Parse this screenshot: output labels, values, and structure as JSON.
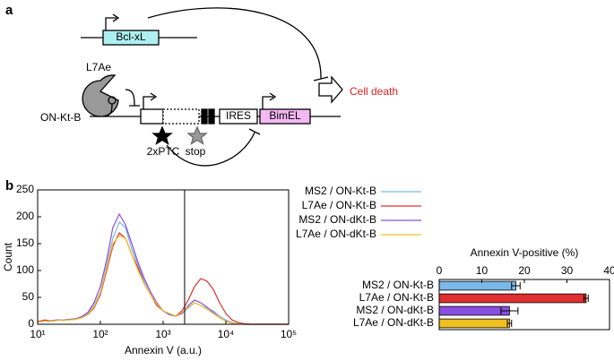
{
  "panels": [
    "a",
    "b"
  ],
  "diagram": {
    "bcl": "Bcl-xL",
    "l7ae": "L7Ae",
    "construct": "ON-Kt-B",
    "ires": "IRES",
    "bimel": "BimEL",
    "death": "Cell death",
    "ptc": "2xPTC",
    "stop": "stop"
  },
  "chart_data": [
    {
      "type": "line",
      "xlabel": "Annexin V (a.u.)",
      "ylabel": "Count",
      "xlog": true,
      "xlim": [
        10,
        100000
      ],
      "xticks": [
        {
          "value": 10,
          "label": "10¹"
        },
        {
          "value": 100,
          "label": "10²"
        },
        {
          "value": 1000,
          "label": "10³"
        },
        {
          "value": 10000,
          "label": "10⁴"
        },
        {
          "value": 100000,
          "label": "10⁵"
        }
      ],
      "ylim": [
        0,
        250
      ],
      "yticks": [
        0,
        50,
        100,
        150,
        200,
        250
      ],
      "gate": 2200,
      "x": [
        10,
        13,
        16,
        20,
        25,
        32,
        40,
        50,
        63,
        79,
        100,
        126,
        158,
        200,
        251,
        316,
        398,
        501,
        631,
        794,
        1000,
        1259,
        1585,
        1995,
        2512,
        3162,
        3981,
        5012,
        6310,
        7943,
        10000,
        12589,
        15849,
        19953,
        25119,
        31623,
        39811,
        50119,
        63096,
        79433,
        100000
      ],
      "series": [
        {
          "name": "MS2 / ON-Kt-B",
          "color": "#7ab8e8",
          "values": [
            5,
            8,
            6,
            8,
            7,
            8,
            10,
            12,
            20,
            35,
            60,
            110,
            160,
            190,
            180,
            140,
            110,
            80,
            60,
            40,
            25,
            20,
            15,
            20,
            30,
            40,
            35,
            30,
            25,
            15,
            8,
            3,
            1,
            0,
            0,
            0,
            0,
            0,
            0,
            0,
            0
          ]
        },
        {
          "name": "L7Ae / ON-Kt-B",
          "color": "#e03030",
          "values": [
            5,
            8,
            6,
            7,
            8,
            9,
            10,
            12,
            18,
            30,
            55,
            100,
            145,
            170,
            160,
            130,
            105,
            75,
            55,
            35,
            25,
            18,
            15,
            25,
            45,
            70,
            85,
            80,
            65,
            40,
            20,
            8,
            3,
            1,
            0,
            0,
            0,
            0,
            0,
            0,
            0
          ]
        },
        {
          "name": "MS2 / ON-dKt-B",
          "color": "#8a4fe0",
          "values": [
            4,
            6,
            6,
            8,
            8,
            9,
            10,
            14,
            22,
            40,
            70,
            120,
            180,
            205,
            185,
            150,
            115,
            85,
            60,
            40,
            25,
            18,
            15,
            20,
            35,
            45,
            40,
            32,
            22,
            12,
            6,
            2,
            1,
            0,
            0,
            0,
            0,
            0,
            0,
            0,
            0
          ]
        },
        {
          "name": "L7Ae / ON-dKt-B",
          "color": "#f0c020",
          "values": [
            4,
            6,
            5,
            7,
            8,
            8,
            9,
            12,
            18,
            32,
            58,
            105,
            150,
            165,
            160,
            130,
            100,
            75,
            55,
            38,
            25,
            20,
            15,
            22,
            32,
            40,
            35,
            28,
            20,
            12,
            6,
            2,
            1,
            0,
            0,
            0,
            0,
            0,
            0,
            0,
            0
          ]
        }
      ]
    },
    {
      "type": "hbar",
      "title": "Annexin V-positive (%)",
      "categories": [
        "MS2 / ON-Kt-B",
        "L7Ae / ON-Kt-B",
        "MS2 / ON-dKt-B",
        "L7Ae / ON-dKt-B"
      ],
      "values": [
        18,
        34.5,
        16.5,
        16.5
      ],
      "errors": [
        1,
        0.5,
        2,
        0.5
      ],
      "colors": [
        "#7ab8e8",
        "#e03030",
        "#8a4fe0",
        "#f0c020"
      ],
      "xlim": [
        0,
        40
      ],
      "xticks": [
        0,
        10,
        20,
        30,
        40
      ]
    }
  ]
}
